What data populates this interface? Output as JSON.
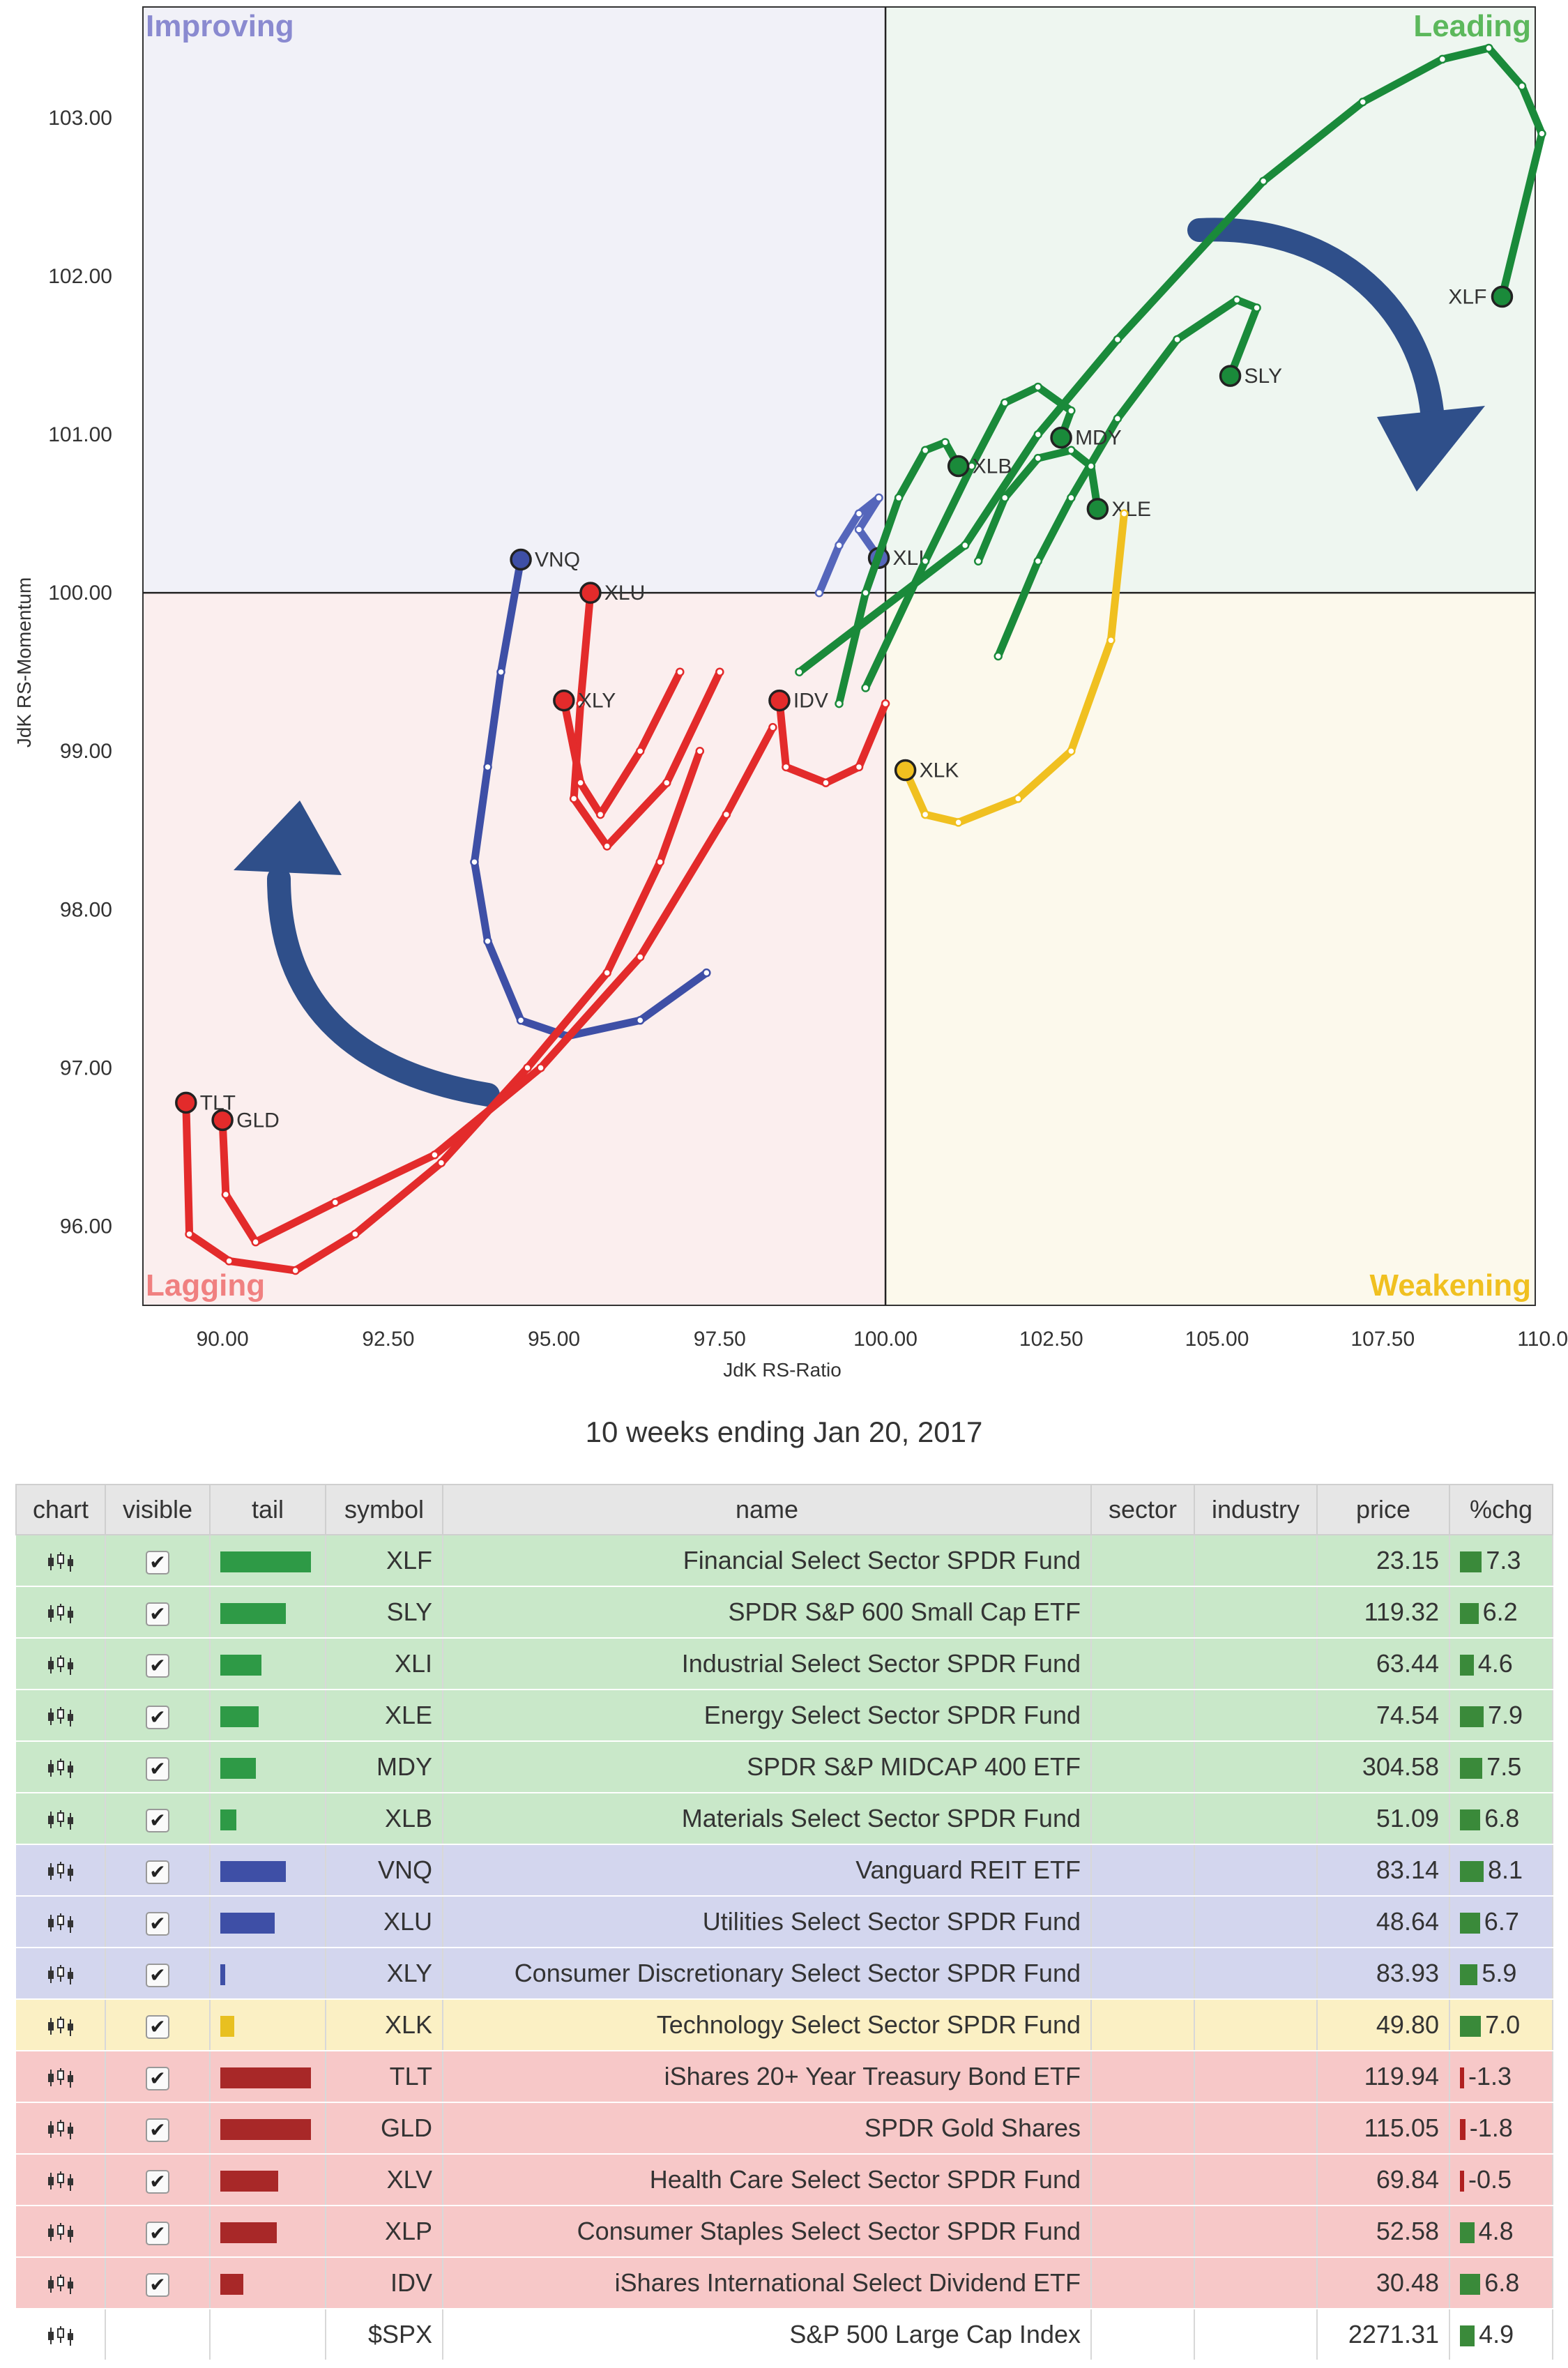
{
  "chart_data": {
    "type": "scatter",
    "title": "",
    "xlabel": "JdK RS-Ratio",
    "ylabel": "JdK RS-Momentum",
    "xlim": [
      88.8,
      109.8
    ],
    "ylim": [
      95.5,
      103.7
    ],
    "center": [
      100,
      100
    ],
    "x_ticks": [
      "90.00",
      "92.50",
      "95.00",
      "97.50",
      "100.00",
      "102.50",
      "105.00",
      "107.50",
      "110.00"
    ],
    "y_ticks": [
      "96.00",
      "97.00",
      "98.00",
      "99.00",
      "100.00",
      "101.00",
      "102.00",
      "103.00"
    ],
    "quadrants": [
      {
        "name": "Improving",
        "color": "#8a8ad0",
        "fill": "#f1f1f8"
      },
      {
        "name": "Leading",
        "color": "#5cb85c",
        "fill": "#eef6f0"
      },
      {
        "name": "Weakening",
        "color": "#f0c020",
        "fill": "#fcf9ec"
      },
      {
        "name": "Lagging",
        "color": "#f08080",
        "fill": "#fbeeee"
      }
    ],
    "series": [
      {
        "name": "XLF",
        "color": "#1a8a3a",
        "points": [
          [
            98.7,
            99.5
          ],
          [
            101.2,
            100.3
          ],
          [
            102.3,
            101.0
          ],
          [
            103.5,
            101.6
          ],
          [
            105.7,
            102.6
          ],
          [
            107.2,
            103.1
          ],
          [
            108.4,
            103.37
          ],
          [
            109.1,
            103.44
          ],
          [
            109.6,
            103.2
          ],
          [
            109.9,
            102.9
          ],
          [
            109.3,
            101.87
          ]
        ]
      },
      {
        "name": "SLY",
        "color": "#1a8a3a",
        "points": [
          [
            101.7,
            99.6
          ],
          [
            102.3,
            100.2
          ],
          [
            102.8,
            100.6
          ],
          [
            103.5,
            101.1
          ],
          [
            104.4,
            101.6
          ],
          [
            105.3,
            101.85
          ],
          [
            105.6,
            101.8
          ],
          [
            105.2,
            101.37
          ]
        ]
      },
      {
        "name": "XLI",
        "color": "#5566bb",
        "points": [
          [
            99.0,
            100.0
          ],
          [
            99.3,
            100.3
          ],
          [
            99.6,
            100.5
          ],
          [
            99.9,
            100.6
          ],
          [
            99.6,
            100.4
          ],
          [
            99.9,
            100.22
          ]
        ]
      },
      {
        "name": "XLE",
        "color": "#1a8a3a",
        "points": [
          [
            101.4,
            100.2
          ],
          [
            101.8,
            100.6
          ],
          [
            102.3,
            100.85
          ],
          [
            102.8,
            100.9
          ],
          [
            103.1,
            100.8
          ],
          [
            103.2,
            100.53
          ]
        ]
      },
      {
        "name": "MDY",
        "color": "#1a8a3a",
        "points": [
          [
            99.7,
            99.4
          ],
          [
            100.6,
            100.2
          ],
          [
            101.3,
            100.8
          ],
          [
            101.8,
            101.2
          ],
          [
            102.3,
            101.3
          ],
          [
            102.8,
            101.15
          ],
          [
            102.65,
            100.98
          ]
        ]
      },
      {
        "name": "XLB",
        "color": "#1a8a3a",
        "points": [
          [
            99.3,
            99.3
          ],
          [
            99.7,
            100.0
          ],
          [
            100.2,
            100.6
          ],
          [
            100.6,
            100.9
          ],
          [
            100.9,
            100.95
          ],
          [
            101.1,
            100.8
          ]
        ]
      },
      {
        "name": "VNQ",
        "color": "#3e4fa6",
        "points": [
          [
            97.3,
            97.6
          ],
          [
            96.3,
            97.3
          ],
          [
            95.2,
            97.2
          ],
          [
            94.5,
            97.3
          ],
          [
            94.0,
            97.8
          ],
          [
            93.8,
            98.3
          ],
          [
            94.0,
            98.9
          ],
          [
            94.2,
            99.5
          ],
          [
            94.5,
            100.21
          ]
        ]
      },
      {
        "name": "XLU",
        "color": "#e32b2b",
        "points": [
          [
            97.5,
            99.5
          ],
          [
            96.7,
            98.8
          ],
          [
            95.8,
            98.4
          ],
          [
            95.3,
            98.7
          ],
          [
            95.4,
            99.3
          ],
          [
            95.55,
            100.0
          ]
        ]
      },
      {
        "name": "XLY",
        "color": "#e32b2b",
        "points": [
          [
            96.9,
            99.5
          ],
          [
            96.3,
            99.0
          ],
          [
            95.7,
            98.6
          ],
          [
            95.4,
            98.8
          ],
          [
            95.15,
            99.32
          ]
        ]
      },
      {
        "name": "XLK",
        "color": "#f0c020",
        "points": [
          [
            103.6,
            100.5
          ],
          [
            103.4,
            99.7
          ],
          [
            102.8,
            99.0
          ],
          [
            102.0,
            98.7
          ],
          [
            101.1,
            98.55
          ],
          [
            100.6,
            98.6
          ],
          [
            100.3,
            98.88
          ]
        ]
      },
      {
        "name": "TLT",
        "color": "#e32b2b",
        "points": [
          [
            97.2,
            99.0
          ],
          [
            96.6,
            98.3
          ],
          [
            95.8,
            97.6
          ],
          [
            94.6,
            97.0
          ],
          [
            93.3,
            96.4
          ],
          [
            92.0,
            95.95
          ],
          [
            91.1,
            95.72
          ],
          [
            90.1,
            95.78
          ],
          [
            89.5,
            95.95
          ],
          [
            89.45,
            96.78
          ]
        ]
      },
      {
        "name": "GLD",
        "color": "#e32b2b",
        "points": [
          [
            98.3,
            99.15
          ],
          [
            97.6,
            98.6
          ],
          [
            96.3,
            97.7
          ],
          [
            94.8,
            97.0
          ],
          [
            93.2,
            96.45
          ],
          [
            91.7,
            96.15
          ],
          [
            90.5,
            95.9
          ],
          [
            90.05,
            96.2
          ],
          [
            90.0,
            96.67
          ]
        ]
      },
      {
        "name": "IDV",
        "color": "#e32b2b",
        "points": [
          [
            100.0,
            99.3
          ],
          [
            99.6,
            98.9
          ],
          [
            99.1,
            98.8
          ],
          [
            98.5,
            98.9
          ],
          [
            98.4,
            99.32
          ]
        ]
      }
    ]
  },
  "caption": "10 weeks ending Jan 20, 2017",
  "table": {
    "headers": {
      "chart": "chart",
      "visible": "visible",
      "tail": "tail",
      "symbol": "symbol",
      "name": "name",
      "sector": "sector",
      "industry": "industry",
      "price": "price",
      "chg": "%chg"
    },
    "rows": [
      {
        "symbol": "XLF",
        "name": "Financial Select Sector SPDR Fund",
        "sector": "",
        "industry": "",
        "price": "23.15",
        "chg": "7.3",
        "visible": true,
        "tail": 1.0,
        "tail_color": "#2e9a46",
        "bg": "#c9e8c9",
        "chg_color": "#3a8a3a"
      },
      {
        "symbol": "SLY",
        "name": "SPDR S&P 600 Small Cap ETF",
        "sector": "",
        "industry": "",
        "price": "119.32",
        "chg": "6.2",
        "visible": true,
        "tail": 0.72,
        "tail_color": "#2e9a46",
        "bg": "#c9e8c9",
        "chg_color": "#3a8a3a"
      },
      {
        "symbol": "XLI",
        "name": "Industrial Select Sector SPDR Fund",
        "sector": "",
        "industry": "",
        "price": "63.44",
        "chg": "4.6",
        "visible": true,
        "tail": 0.45,
        "tail_color": "#2e9a46",
        "bg": "#c9e8c9",
        "chg_color": "#3a8a3a"
      },
      {
        "symbol": "XLE",
        "name": "Energy Select Sector SPDR Fund",
        "sector": "",
        "industry": "",
        "price": "74.54",
        "chg": "7.9",
        "visible": true,
        "tail": 0.42,
        "tail_color": "#2e9a46",
        "bg": "#c9e8c9",
        "chg_color": "#3a8a3a"
      },
      {
        "symbol": "MDY",
        "name": "SPDR S&P MIDCAP 400 ETF",
        "sector": "",
        "industry": "",
        "price": "304.58",
        "chg": "7.5",
        "visible": true,
        "tail": 0.39,
        "tail_color": "#2e9a46",
        "bg": "#c9e8c9",
        "chg_color": "#3a8a3a"
      },
      {
        "symbol": "XLB",
        "name": "Materials Select Sector SPDR Fund",
        "sector": "",
        "industry": "",
        "price": "51.09",
        "chg": "6.8",
        "visible": true,
        "tail": 0.18,
        "tail_color": "#2e9a46",
        "bg": "#c9e8c9",
        "chg_color": "#3a8a3a"
      },
      {
        "symbol": "VNQ",
        "name": "Vanguard REIT ETF",
        "sector": "",
        "industry": "",
        "price": "83.14",
        "chg": "8.1",
        "visible": true,
        "tail": 0.72,
        "tail_color": "#3e4fa6",
        "bg": "#d3d6ee",
        "chg_color": "#3a8a3a"
      },
      {
        "symbol": "XLU",
        "name": "Utilities Select Sector SPDR Fund",
        "sector": "",
        "industry": "",
        "price": "48.64",
        "chg": "6.7",
        "visible": true,
        "tail": 0.6,
        "tail_color": "#3e4fa6",
        "bg": "#d3d6ee",
        "chg_color": "#3a8a3a"
      },
      {
        "symbol": "XLY",
        "name": "Consumer Discretionary Select Sector SPDR Fund",
        "sector": "",
        "industry": "",
        "price": "83.93",
        "chg": "5.9",
        "visible": true,
        "tail": 0.05,
        "tail_color": "#3e4fa6",
        "bg": "#d3d6ee",
        "chg_color": "#3a8a3a"
      },
      {
        "symbol": "XLK",
        "name": "Technology Select Sector SPDR Fund",
        "sector": "",
        "industry": "",
        "price": "49.80",
        "chg": "7.0",
        "visible": true,
        "tail": 0.15,
        "tail_color": "#e8c020",
        "bg": "#fbf0c4",
        "chg_color": "#3a8a3a"
      },
      {
        "symbol": "TLT",
        "name": "iShares 20+ Year Treasury Bond ETF",
        "sector": "",
        "industry": "",
        "price": "119.94",
        "chg": "-1.3",
        "visible": true,
        "tail": 1.0,
        "tail_color": "#a82828",
        "bg": "#f7c8c8",
        "chg_color": "#b02020"
      },
      {
        "symbol": "GLD",
        "name": "SPDR Gold Shares",
        "sector": "",
        "industry": "",
        "price": "115.05",
        "chg": "-1.8",
        "visible": true,
        "tail": 1.0,
        "tail_color": "#a82828",
        "bg": "#f7c8c8",
        "chg_color": "#b02020"
      },
      {
        "symbol": "XLV",
        "name": "Health Care Select Sector SPDR Fund",
        "sector": "",
        "industry": "",
        "price": "69.84",
        "chg": "-0.5",
        "visible": true,
        "tail": 0.64,
        "tail_color": "#a82828",
        "bg": "#f7c8c8",
        "chg_color": "#b02020"
      },
      {
        "symbol": "XLP",
        "name": "Consumer Staples Select Sector SPDR Fund",
        "sector": "",
        "industry": "",
        "price": "52.58",
        "chg": "4.8",
        "visible": true,
        "tail": 0.62,
        "tail_color": "#a82828",
        "bg": "#f7c8c8",
        "chg_color": "#3a8a3a"
      },
      {
        "symbol": "IDV",
        "name": "iShares International Select Dividend ETF",
        "sector": "",
        "industry": "",
        "price": "30.48",
        "chg": "6.8",
        "visible": true,
        "tail": 0.25,
        "tail_color": "#a82828",
        "bg": "#f7c8c8",
        "chg_color": "#3a8a3a"
      },
      {
        "symbol": "$SPX",
        "name": "S&P 500 Large Cap Index",
        "sector": "",
        "industry": "",
        "price": "2271.31",
        "chg": "4.9",
        "visible": null,
        "tail": 0,
        "tail_color": "#ffffff",
        "bg": "#ffffff",
        "chg_color": "#3a8a3a"
      }
    ]
  }
}
